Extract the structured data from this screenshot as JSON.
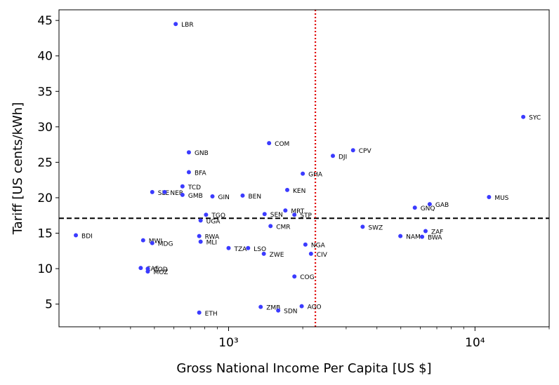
{
  "chart_data": {
    "type": "scatter",
    "xlabel": "Gross National Income Per Capita [US $]",
    "ylabel": "Tariff [US cents/kWh]",
    "x_scale": "log",
    "xlim": [
      205,
      20000
    ],
    "ylim": [
      1.8,
      46.5
    ],
    "x_ticks": [
      {
        "value": 1000,
        "label": "10³"
      },
      {
        "value": 10000,
        "label": "10⁴"
      }
    ],
    "y_ticks": [
      5,
      10,
      15,
      20,
      25,
      30,
      35,
      40,
      45
    ],
    "point_color": "#3b3bff",
    "hline": {
      "y": 17.1,
      "style": "dashed",
      "color": "#000000"
    },
    "vline": {
      "x": 2250,
      "style": "dotted",
      "color": "#e00000"
    },
    "points": [
      {
        "label": "LBR",
        "x": 610,
        "y": 44.5
      },
      {
        "label": "SYC",
        "x": 15700,
        "y": 31.4
      },
      {
        "label": "COM",
        "x": 1460,
        "y": 27.7
      },
      {
        "label": "CPV",
        "x": 3200,
        "y": 26.7
      },
      {
        "label": "GNB",
        "x": 690,
        "y": 26.4
      },
      {
        "label": "DJI",
        "x": 2650,
        "y": 25.9
      },
      {
        "label": "BFA",
        "x": 690,
        "y": 23.6
      },
      {
        "label": "GHA",
        "x": 2000,
        "y": 23.4
      },
      {
        "label": "TCD",
        "x": 650,
        "y": 21.6
      },
      {
        "label": "KEN",
        "x": 1730,
        "y": 21.1
      },
      {
        "label": "SLE",
        "x": 490,
        "y": 20.8
      },
      {
        "label": "NER",
        "x": 550,
        "y": 20.8
      },
      {
        "label": "GMB",
        "x": 650,
        "y": 20.4
      },
      {
        "label": "GIN",
        "x": 860,
        "y": 20.2
      },
      {
        "label": "BEN",
        "x": 1140,
        "y": 20.3
      },
      {
        "label": "MUS",
        "x": 11400,
        "y": 20.1
      },
      {
        "label": "GAB",
        "x": 6550,
        "y": 19.1
      },
      {
        "label": "GNQ",
        "x": 5700,
        "y": 18.6
      },
      {
        "label": "MRT",
        "x": 1700,
        "y": 18.2
      },
      {
        "label": "TGO",
        "x": 810,
        "y": 17.6
      },
      {
        "label": "SEN",
        "x": 1400,
        "y": 17.7
      },
      {
        "label": "STP",
        "x": 1850,
        "y": 17.6
      },
      {
        "label": "UGA",
        "x": 770,
        "y": 16.8
      },
      {
        "label": "CMR",
        "x": 1480,
        "y": 16.0
      },
      {
        "label": "SWZ",
        "x": 3500,
        "y": 15.9
      },
      {
        "label": "ZAF",
        "x": 6300,
        "y": 15.3
      },
      {
        "label": "BDI",
        "x": 240,
        "y": 14.7
      },
      {
        "label": "RWA",
        "x": 760,
        "y": 14.6
      },
      {
        "label": "NAM",
        "x": 4980,
        "y": 14.6
      },
      {
        "label": "BWA",
        "x": 6100,
        "y": 14.5
      },
      {
        "label": "MWI",
        "x": 450,
        "y": 14.0
      },
      {
        "label": "MDG",
        "x": 490,
        "y": 13.6
      },
      {
        "label": "MLI",
        "x": 770,
        "y": 13.8
      },
      {
        "label": "NGA",
        "x": 2050,
        "y": 13.4
      },
      {
        "label": "TZA",
        "x": 1000,
        "y": 12.9
      },
      {
        "label": "LSO",
        "x": 1200,
        "y": 12.9
      },
      {
        "label": "ZWE",
        "x": 1390,
        "y": 12.1
      },
      {
        "label": "CIV",
        "x": 2160,
        "y": 12.1
      },
      {
        "label": "CAF",
        "x": 440,
        "y": 10.1
      },
      {
        "label": "COD",
        "x": 470,
        "y": 10.0
      },
      {
        "label": "MOZ",
        "x": 470,
        "y": 9.6
      },
      {
        "label": "COG",
        "x": 1850,
        "y": 8.9
      },
      {
        "label": "ZMB",
        "x": 1350,
        "y": 4.6
      },
      {
        "label": "AGO",
        "x": 1980,
        "y": 4.7
      },
      {
        "label": "SDN",
        "x": 1590,
        "y": 4.1
      },
      {
        "label": "ETH",
        "x": 760,
        "y": 3.8
      }
    ]
  }
}
